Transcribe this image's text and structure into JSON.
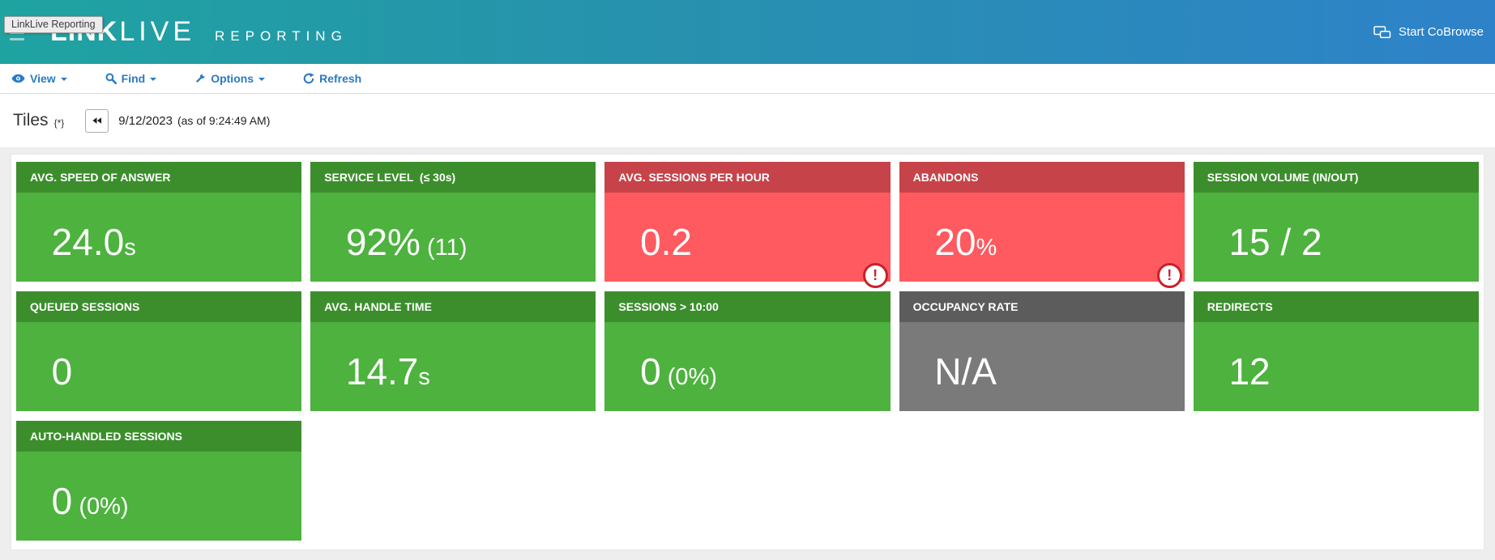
{
  "header": {
    "logo": {
      "link": "LINK",
      "live": "LIVE",
      "reporting": "REPORTING"
    },
    "cobrowse_label": "Start CoBrowse",
    "gradient_left": "#1FA3A1",
    "gradient_right": "#2E82C9"
  },
  "tooltip": {
    "text": "LinkLive Reporting"
  },
  "toolbar": {
    "link_color": "#2A79C4",
    "items": [
      {
        "label": "View",
        "icon": "eye-icon",
        "has_caret": true
      },
      {
        "label": "Find",
        "icon": "search-icon",
        "has_caret": true
      },
      {
        "label": "Options",
        "icon": "wrench-icon",
        "has_caret": true
      },
      {
        "label": "Refresh",
        "icon": "refresh-icon",
        "has_caret": false
      }
    ]
  },
  "titlebar": {
    "title": "Tiles",
    "title_suffix": "{*}",
    "date": "9/12/2023",
    "asof": "(as of 9:24:49 AM)"
  },
  "tiles": [
    {
      "label": "AVG. SPEED OF ANSWER",
      "value": "24.0",
      "suffix": "s",
      "status": "green",
      "alert": false
    },
    {
      "label": "SERVICE LEVEL  (≤ 30s)",
      "value": "92%",
      "suffix": " (11)",
      "status": "green",
      "alert": false
    },
    {
      "label": "AVG. SESSIONS PER HOUR",
      "value": "0.2",
      "suffix": "",
      "status": "red",
      "alert": true
    },
    {
      "label": "ABANDONS",
      "value": "20",
      "suffix": "%",
      "status": "red",
      "alert": true
    },
    {
      "label": "SESSION VOLUME (IN/OUT)",
      "value": "15 / 2",
      "suffix": "",
      "status": "green",
      "alert": false
    },
    {
      "label": "QUEUED SESSIONS",
      "value": "0",
      "suffix": "",
      "status": "green",
      "alert": false
    },
    {
      "label": "AVG. HANDLE TIME",
      "value": "14.7",
      "suffix": "s",
      "status": "green",
      "alert": false
    },
    {
      "label": "SESSIONS > 10:00",
      "value": "0",
      "suffix": " (0%)",
      "status": "green",
      "alert": false
    },
    {
      "label": "OCCUPANCY RATE",
      "value": "N/A",
      "suffix": "",
      "status": "gray",
      "alert": false
    },
    {
      "label": "REDIRECTS",
      "value": "12",
      "suffix": "",
      "status": "green",
      "alert": false
    },
    {
      "label": "AUTO-HANDLED SESSIONS",
      "value": "0",
      "suffix": " (0%)",
      "status": "green",
      "alert": false
    }
  ],
  "alert_glyph": "!",
  "colors": {
    "green_header": "#3C8E2C",
    "green_body": "#4DB23E",
    "red_header": "#C7434A",
    "red_body": "#FE5A60",
    "gray_header": "#5C5C5C",
    "gray_body": "#7A7A7A",
    "alert_ring": "#C9202B"
  }
}
